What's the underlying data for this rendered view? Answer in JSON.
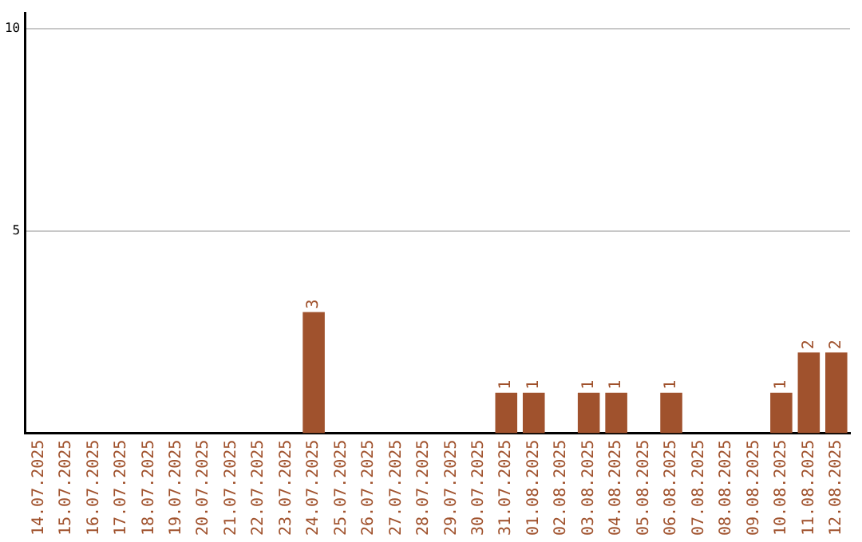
{
  "chart_data": {
    "type": "bar",
    "categories": [
      "14.07.2025",
      "15.07.2025",
      "16.07.2025",
      "17.07.2025",
      "18.07.2025",
      "19.07.2025",
      "20.07.2025",
      "21.07.2025",
      "22.07.2025",
      "23.07.2025",
      "24.07.2025",
      "25.07.2025",
      "26.07.2025",
      "27.07.2025",
      "28.07.2025",
      "29.07.2025",
      "30.07.2025",
      "31.07.2025",
      "01.08.2025",
      "02.08.2025",
      "03.08.2025",
      "04.08.2025",
      "05.08.2025",
      "06.08.2025",
      "07.08.2025",
      "08.08.2025",
      "09.08.2025",
      "10.08.2025",
      "11.08.2025",
      "12.08.2025"
    ],
    "values": [
      0,
      0,
      0,
      0,
      0,
      0,
      0,
      0,
      0,
      0,
      3,
      0,
      0,
      0,
      0,
      0,
      0,
      1,
      1,
      0,
      1,
      1,
      0,
      1,
      0,
      0,
      0,
      1,
      2,
      2
    ],
    "value_labels": [
      null,
      null,
      null,
      null,
      null,
      null,
      null,
      null,
      null,
      null,
      "3",
      null,
      null,
      null,
      null,
      null,
      null,
      "1",
      "1",
      null,
      "1",
      "1",
      null,
      "1",
      null,
      null,
      null,
      "1",
      "2",
      "2"
    ],
    "color": "#a0522d",
    "ylim": [
      0,
      10.4
    ],
    "yticks": [
      5,
      10
    ],
    "grid": "y",
    "legend": false
  }
}
